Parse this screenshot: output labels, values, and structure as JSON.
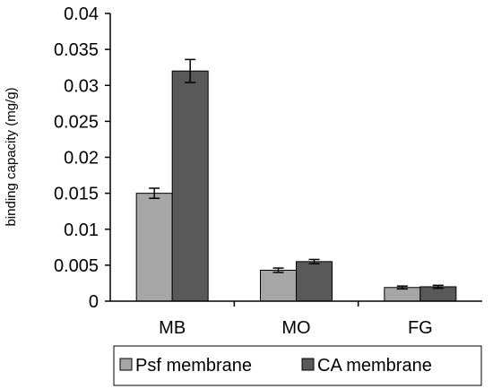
{
  "chart_data": {
    "type": "bar",
    "categories": [
      "MB",
      "MO",
      "FG"
    ],
    "series": [
      {
        "name": "Psf membrane",
        "values": [
          0.015,
          0.0043,
          0.0019
        ],
        "errors": [
          0.0007,
          0.0003,
          0.0002
        ],
        "color": "#a6a6a6"
      },
      {
        "name": "CA membrane",
        "values": [
          0.032,
          0.0055,
          0.002
        ],
        "errors": [
          0.0016,
          0.0003,
          0.0002
        ],
        "color": "#595959"
      }
    ],
    "title": "",
    "xlabel": "",
    "ylabel": "binding capacity  (mg/g)",
    "ylim": [
      0,
      0.04
    ],
    "yticks": [
      "0",
      "0.005",
      "0.01",
      "0.015",
      "0.02",
      "0.025",
      "0.03",
      "0.035",
      "0.04"
    ],
    "grid": false,
    "legend": "bottom"
  }
}
